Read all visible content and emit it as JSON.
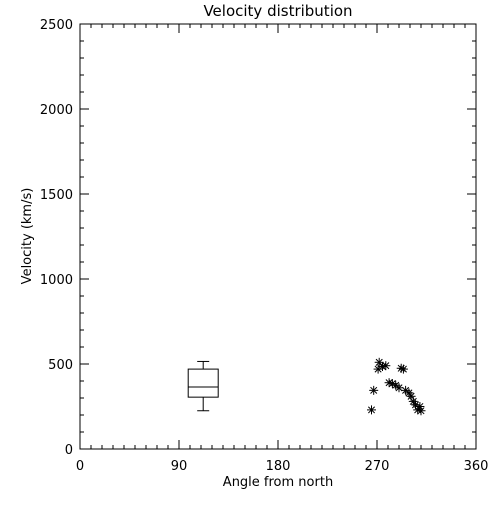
{
  "chart_data": {
    "type": "scatter",
    "title": "Velocity distribution",
    "xlabel": "Angle from north",
    "ylabel": "Velocity (km/s)",
    "xlim": [
      0,
      360
    ],
    "ylim": [
      0,
      2500
    ],
    "x_ticks": [
      0,
      90,
      180,
      270,
      360
    ],
    "y_ticks": [
      0,
      500,
      1000,
      1500,
      2000,
      2500
    ],
    "grid": false,
    "legend": "none",
    "boxplot": {
      "x": 112,
      "whisker_low": 225,
      "q1": 305,
      "median": 365,
      "q3": 470,
      "whisker_high": 515
    },
    "points": [
      {
        "x": 265,
        "y": 230
      },
      {
        "x": 267,
        "y": 345
      },
      {
        "x": 271,
        "y": 470
      },
      {
        "x": 272,
        "y": 510
      },
      {
        "x": 275,
        "y": 485
      },
      {
        "x": 278,
        "y": 490
      },
      {
        "x": 281,
        "y": 390
      },
      {
        "x": 284,
        "y": 385
      },
      {
        "x": 287,
        "y": 375
      },
      {
        "x": 290,
        "y": 360
      },
      {
        "x": 292,
        "y": 475
      },
      {
        "x": 294,
        "y": 470
      },
      {
        "x": 296,
        "y": 345
      },
      {
        "x": 299,
        "y": 330
      },
      {
        "x": 301,
        "y": 310
      },
      {
        "x": 303,
        "y": 280
      },
      {
        "x": 305,
        "y": 260
      },
      {
        "x": 307,
        "y": 230
      },
      {
        "x": 309,
        "y": 250
      },
      {
        "x": 310,
        "y": 225
      }
    ],
    "marker": "asterisk"
  }
}
